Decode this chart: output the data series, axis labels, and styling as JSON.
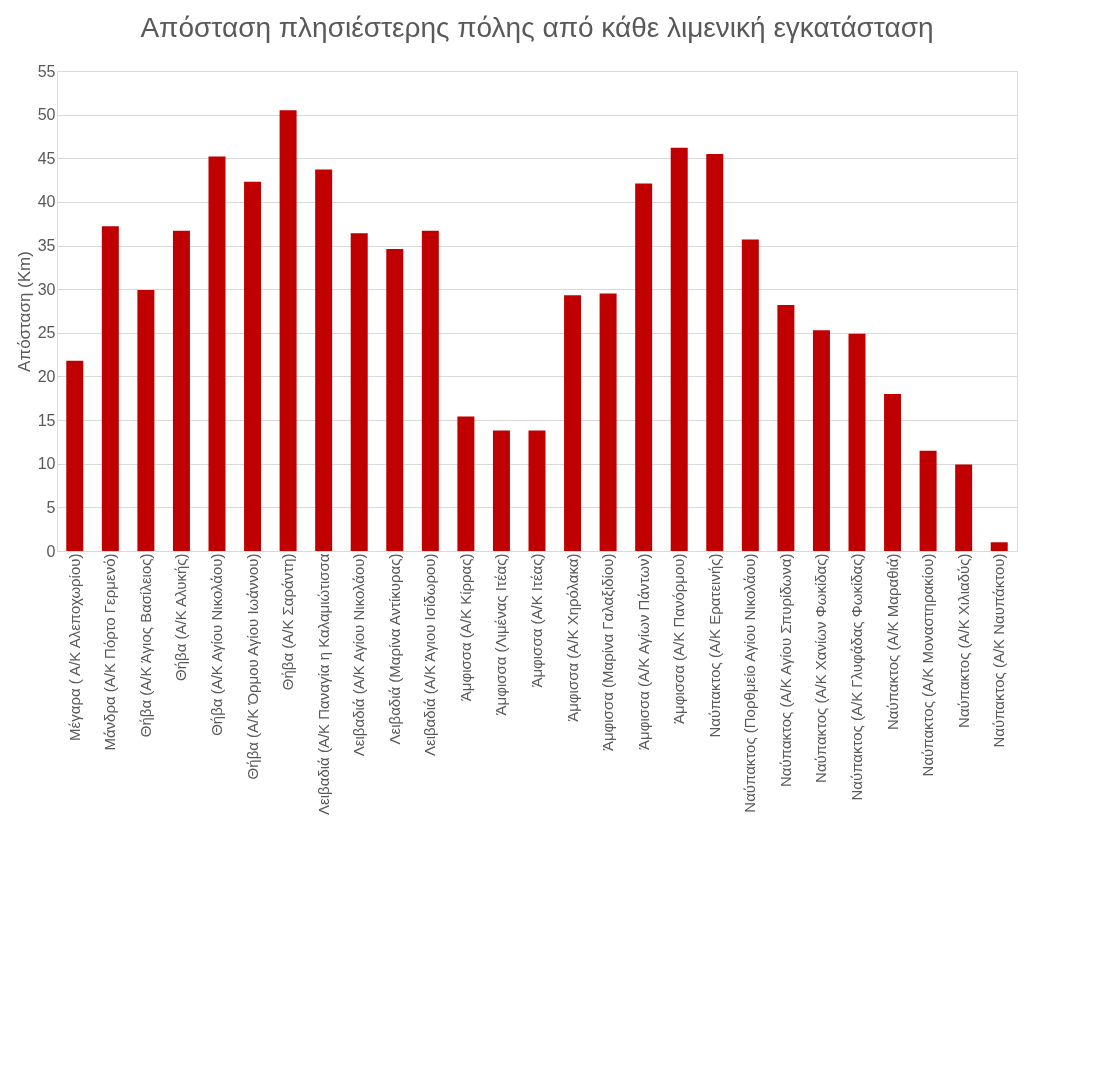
{
  "chart_data": {
    "type": "bar",
    "title": "Απόσταση πλησιέστερης πόλης από κάθε λιμενική εγκατάσταση",
    "ylabel": "Απόσταση (Km)",
    "categories": [
      "Μέγαρα ( Α/Κ Αλεποχωρίου)",
      "Μάνδρα (Α/Κ Πόρτο Γερμενό)",
      "Θήβα (Α/Κ Άγιος Βασίλειος)",
      "Θήβα (Α/Κ Αλυκής)",
      "Θήβα (Α/Κ Αγίου Νικολάου)",
      "Θήβα (Α/Κ Όρμου Αγίου Ιωάννου)",
      "Θήβα (Α/Κ Σαράντη)",
      "Λειβαδιά (Α/Κ Παναγία η Καλαμιώτισσα",
      "Λειβαδιά (Α/Κ Αγίου Νικολάου)",
      "Λειβαδιά (Μαρίνα Αντίκυρας)",
      "Λειβαδιά (Α/Κ Άγιου Ισίδωρου)",
      "Άμφισσα (Α/Κ Κίρρας)",
      "Άμφισσα (Λιμένας Ιτέας)",
      "Άμφισσα (Α/Κ Ιτέας)",
      "Άμφισσα (Α/Κ Χηρόλακα)",
      "Άμφισσα (Μαρίνα Γαλαξιδίου)",
      "Άμφισσα (Α/Κ Αγίων Πάντων)",
      "Άμφισσα (Α/Κ Πανόρμου)",
      "Ναύπακτος (Α/Κ Ερατεινής)",
      "Ναύπακτος (Πορθμείο Αγίου Νικολάου)",
      "Ναύπακτος (Α/Κ Αγίου Σπυρίδωνα)",
      "Ναύπακτος (Α/Κ Χανίων Φωκίδας)",
      "Ναύπακτος (Α/Κ Γλυφάδας Φωκίδας)",
      "Ναύπακτος (Α/Κ Μαραθιά)",
      "Ναύπακτος (Α/Κ Μοναστηρακίου)",
      "Ναύπακτος (Α/Κ Χιλιαδύς)",
      "Ναύπακτος (Α/Κ Ναυπάκτου)"
    ],
    "values": [
      21.8,
      37.2,
      29.9,
      36.7,
      45.2,
      42.3,
      50.5,
      43.7,
      36.4,
      34.6,
      36.7,
      15.4,
      13.8,
      13.8,
      29.3,
      29.5,
      42.1,
      46.2,
      45.5,
      35.7,
      28.2,
      25.3,
      24.9,
      18.0,
      11.5,
      9.9,
      1.0
    ],
    "color": "#c00000",
    "ylim": [
      0,
      55
    ],
    "yticks": [
      0,
      5,
      10,
      15,
      20,
      25,
      30,
      35,
      40,
      45,
      50,
      55
    ],
    "grid": "y"
  }
}
